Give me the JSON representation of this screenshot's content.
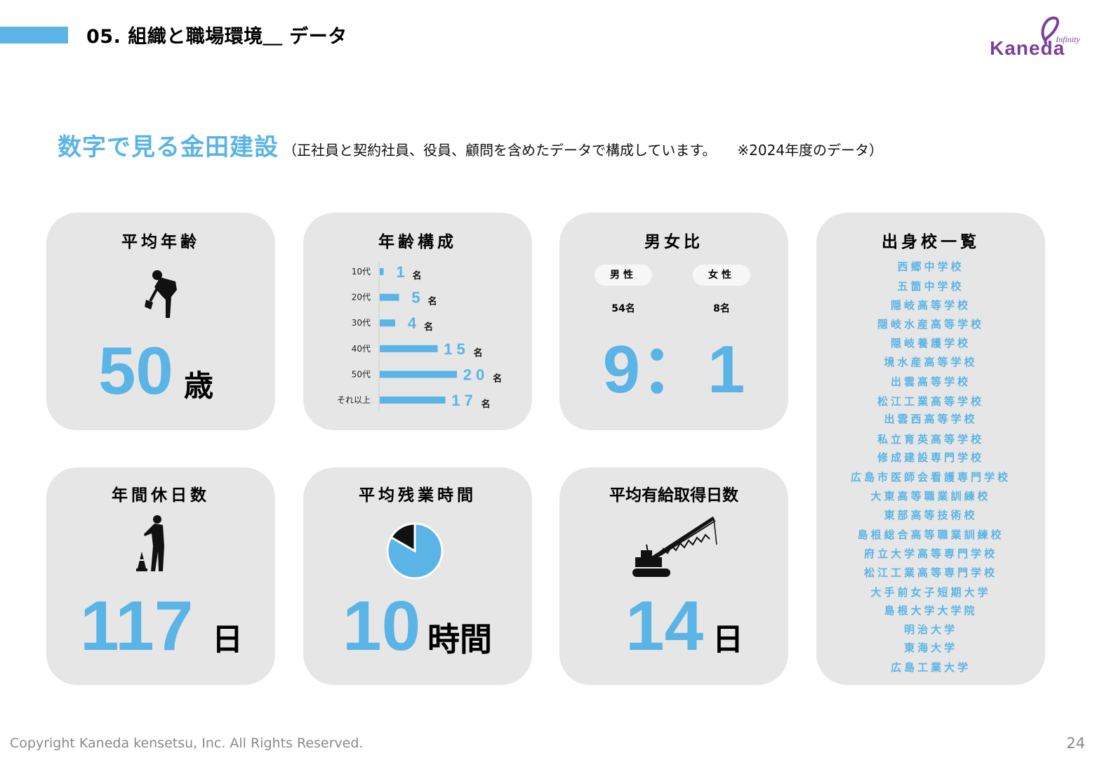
{
  "header": {
    "title": "05. 組織と職場環境＿ データ",
    "logo_script": "Infinity",
    "logo_word": "Kaneda"
  },
  "headline": {
    "main": "数字で見る金田建設",
    "note": "（正社員と契約社員、役員、顧問を含めたデータで構成しています。",
    "note2": "※2024年度のデータ）"
  },
  "cards": {
    "avg_age": {
      "title": "平均年齢",
      "value": "50",
      "unit": "歳",
      "icon": "worker-shovel-icon"
    },
    "age_comp": {
      "title": "年齢構成"
    },
    "gender": {
      "title": "男女比",
      "male_label": "男性",
      "male_count": "54名",
      "female_label": "女性",
      "female_count": "8名",
      "ratio": "9：1"
    },
    "holidays": {
      "title": "年間休日数",
      "value": "117",
      "unit": "日",
      "icon": "worker-cone-icon"
    },
    "overtime": {
      "title": "平均残業時間",
      "value": "10",
      "unit": "時間",
      "icon": "pie-icon"
    },
    "paid_leave": {
      "title": "平均有給取得日数",
      "value": "14",
      "unit": "日",
      "icon": "crane-icon"
    }
  },
  "chart_data": [
    {
      "type": "bar",
      "orientation": "horizontal",
      "title": "年齢構成",
      "categories": [
        "10代",
        "20代",
        "30代",
        "40代",
        "50代",
        "それ以上"
      ],
      "values": [
        1,
        5,
        4,
        15,
        20,
        17
      ],
      "value_unit": "名",
      "color": "#5ab4e6"
    },
    {
      "type": "pie",
      "title": "平均残業時間",
      "values": [
        10,
        2
      ],
      "colors": [
        "#5ab4e6",
        "#111111"
      ]
    }
  ],
  "schools": {
    "title": "出身校一覧",
    "items": [
      "西郷中学校",
      "五箇中学校",
      "隠岐高等学校",
      "隠岐水産高等学校",
      "隠岐養護学校",
      "境水産高等学校",
      "出雲高等学校",
      "松江工業高等学校",
      "出雲西高等学校",
      "私立育英高等学校",
      "修成建設専門学校",
      "広島市医師会看護専門学校",
      "大東高等職業訓練校",
      "東部高等技術校",
      "島根総合高等職業訓練校",
      "府立大学高等専門学校",
      "松江工業高等専門学校",
      "大手前女子短期大学",
      "島根大学大学院",
      "明治大学",
      "東海大学",
      "広島工業大学"
    ]
  },
  "footer": {
    "copyright": "Copyright Kaneda kensetsu, Inc. All Rights Reserved.",
    "page": "24"
  },
  "colors": {
    "accent": "#5ab4e6",
    "card": "#e6e6e6",
    "logo_purple": "#7b3f9a"
  }
}
